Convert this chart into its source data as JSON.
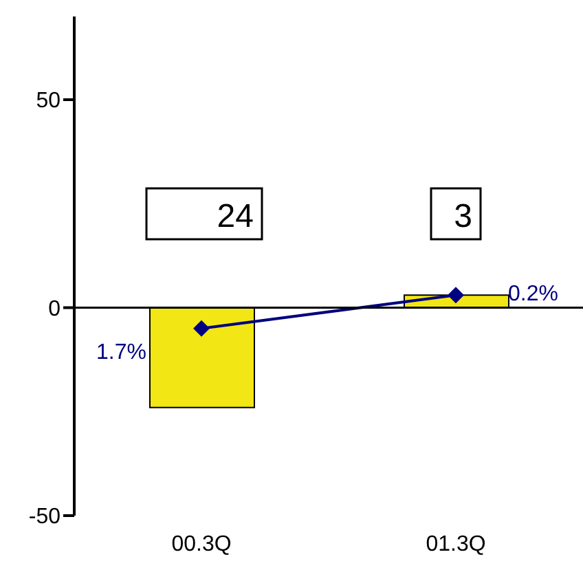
{
  "chart_data": {
    "type": "bar",
    "categories": [
      "00.3Q",
      "01.3Q"
    ],
    "series": [
      {
        "color": "#f2e614",
        "values": [
          -24,
          3
        ]
      },
      {
        "type": "line",
        "color": "#000080",
        "values": [
          -5,
          3
        ],
        "marker": "diamond"
      }
    ],
    "ylim": [
      -50,
      70
    ],
    "yticks": [
      -50,
      0,
      50
    ],
    "annotations": [
      "24",
      "3",
      {
        "text": "1.7%",
        "x": "00.3Q",
        "y": -5
      },
      {
        "text": "0.2%",
        "x": "01.3Q",
        "y": 3
      }
    ],
    "ref_lines": [
      {
        "axis": "y",
        "value": 0,
        "color": "#000000"
      }
    ]
  }
}
